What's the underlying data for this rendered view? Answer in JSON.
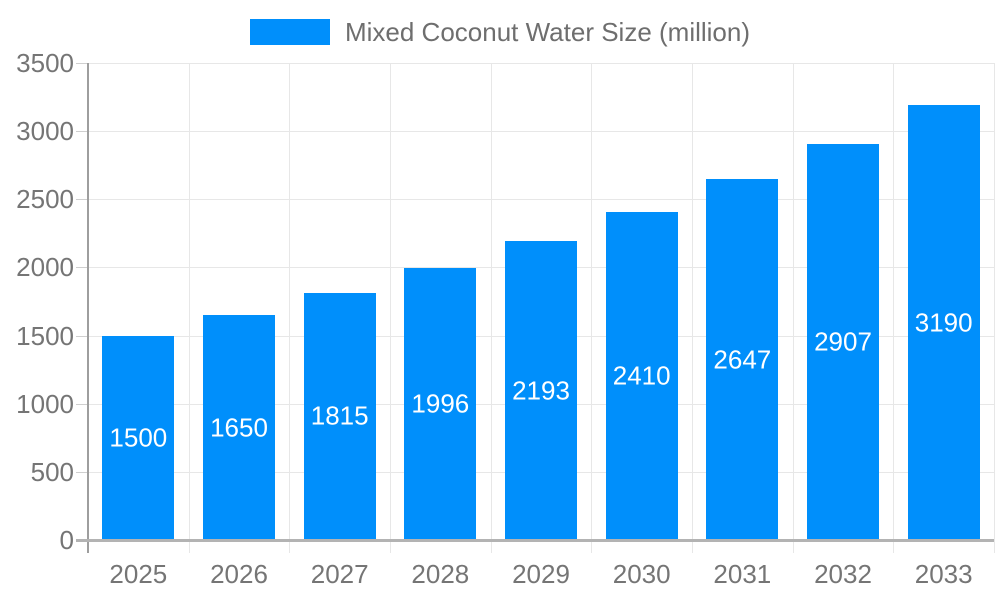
{
  "chart_data": {
    "type": "bar",
    "title": "Mixed Coconut Water Size (million)",
    "categories": [
      "2025",
      "2026",
      "2027",
      "2028",
      "2029",
      "2030",
      "2031",
      "2032",
      "2033"
    ],
    "series": [
      {
        "name": "Mixed Coconut Water Size (million)",
        "values": [
          1500,
          1650,
          1815,
          1996,
          2193,
          2410,
          2647,
          2907,
          3190
        ]
      }
    ],
    "xlabel": "",
    "ylabel": "",
    "ylim": [
      0,
      3500
    ],
    "yticks": [
      0,
      500,
      1000,
      1500,
      2000,
      2500,
      3000,
      3500
    ],
    "grid": true,
    "vertical_grid": true,
    "legend_position": "top",
    "bar_labels_visible": true,
    "colors": {
      "bar": "#008FFB",
      "bar_label": "#FFFFFF",
      "axis_text": "#757575",
      "legend_text": "#6E6E6E",
      "gridline": "#E7E7E7",
      "axis_line": "#9E9E9E",
      "baseline": "#B3B3B3",
      "tick": "#CFCFCF"
    }
  }
}
